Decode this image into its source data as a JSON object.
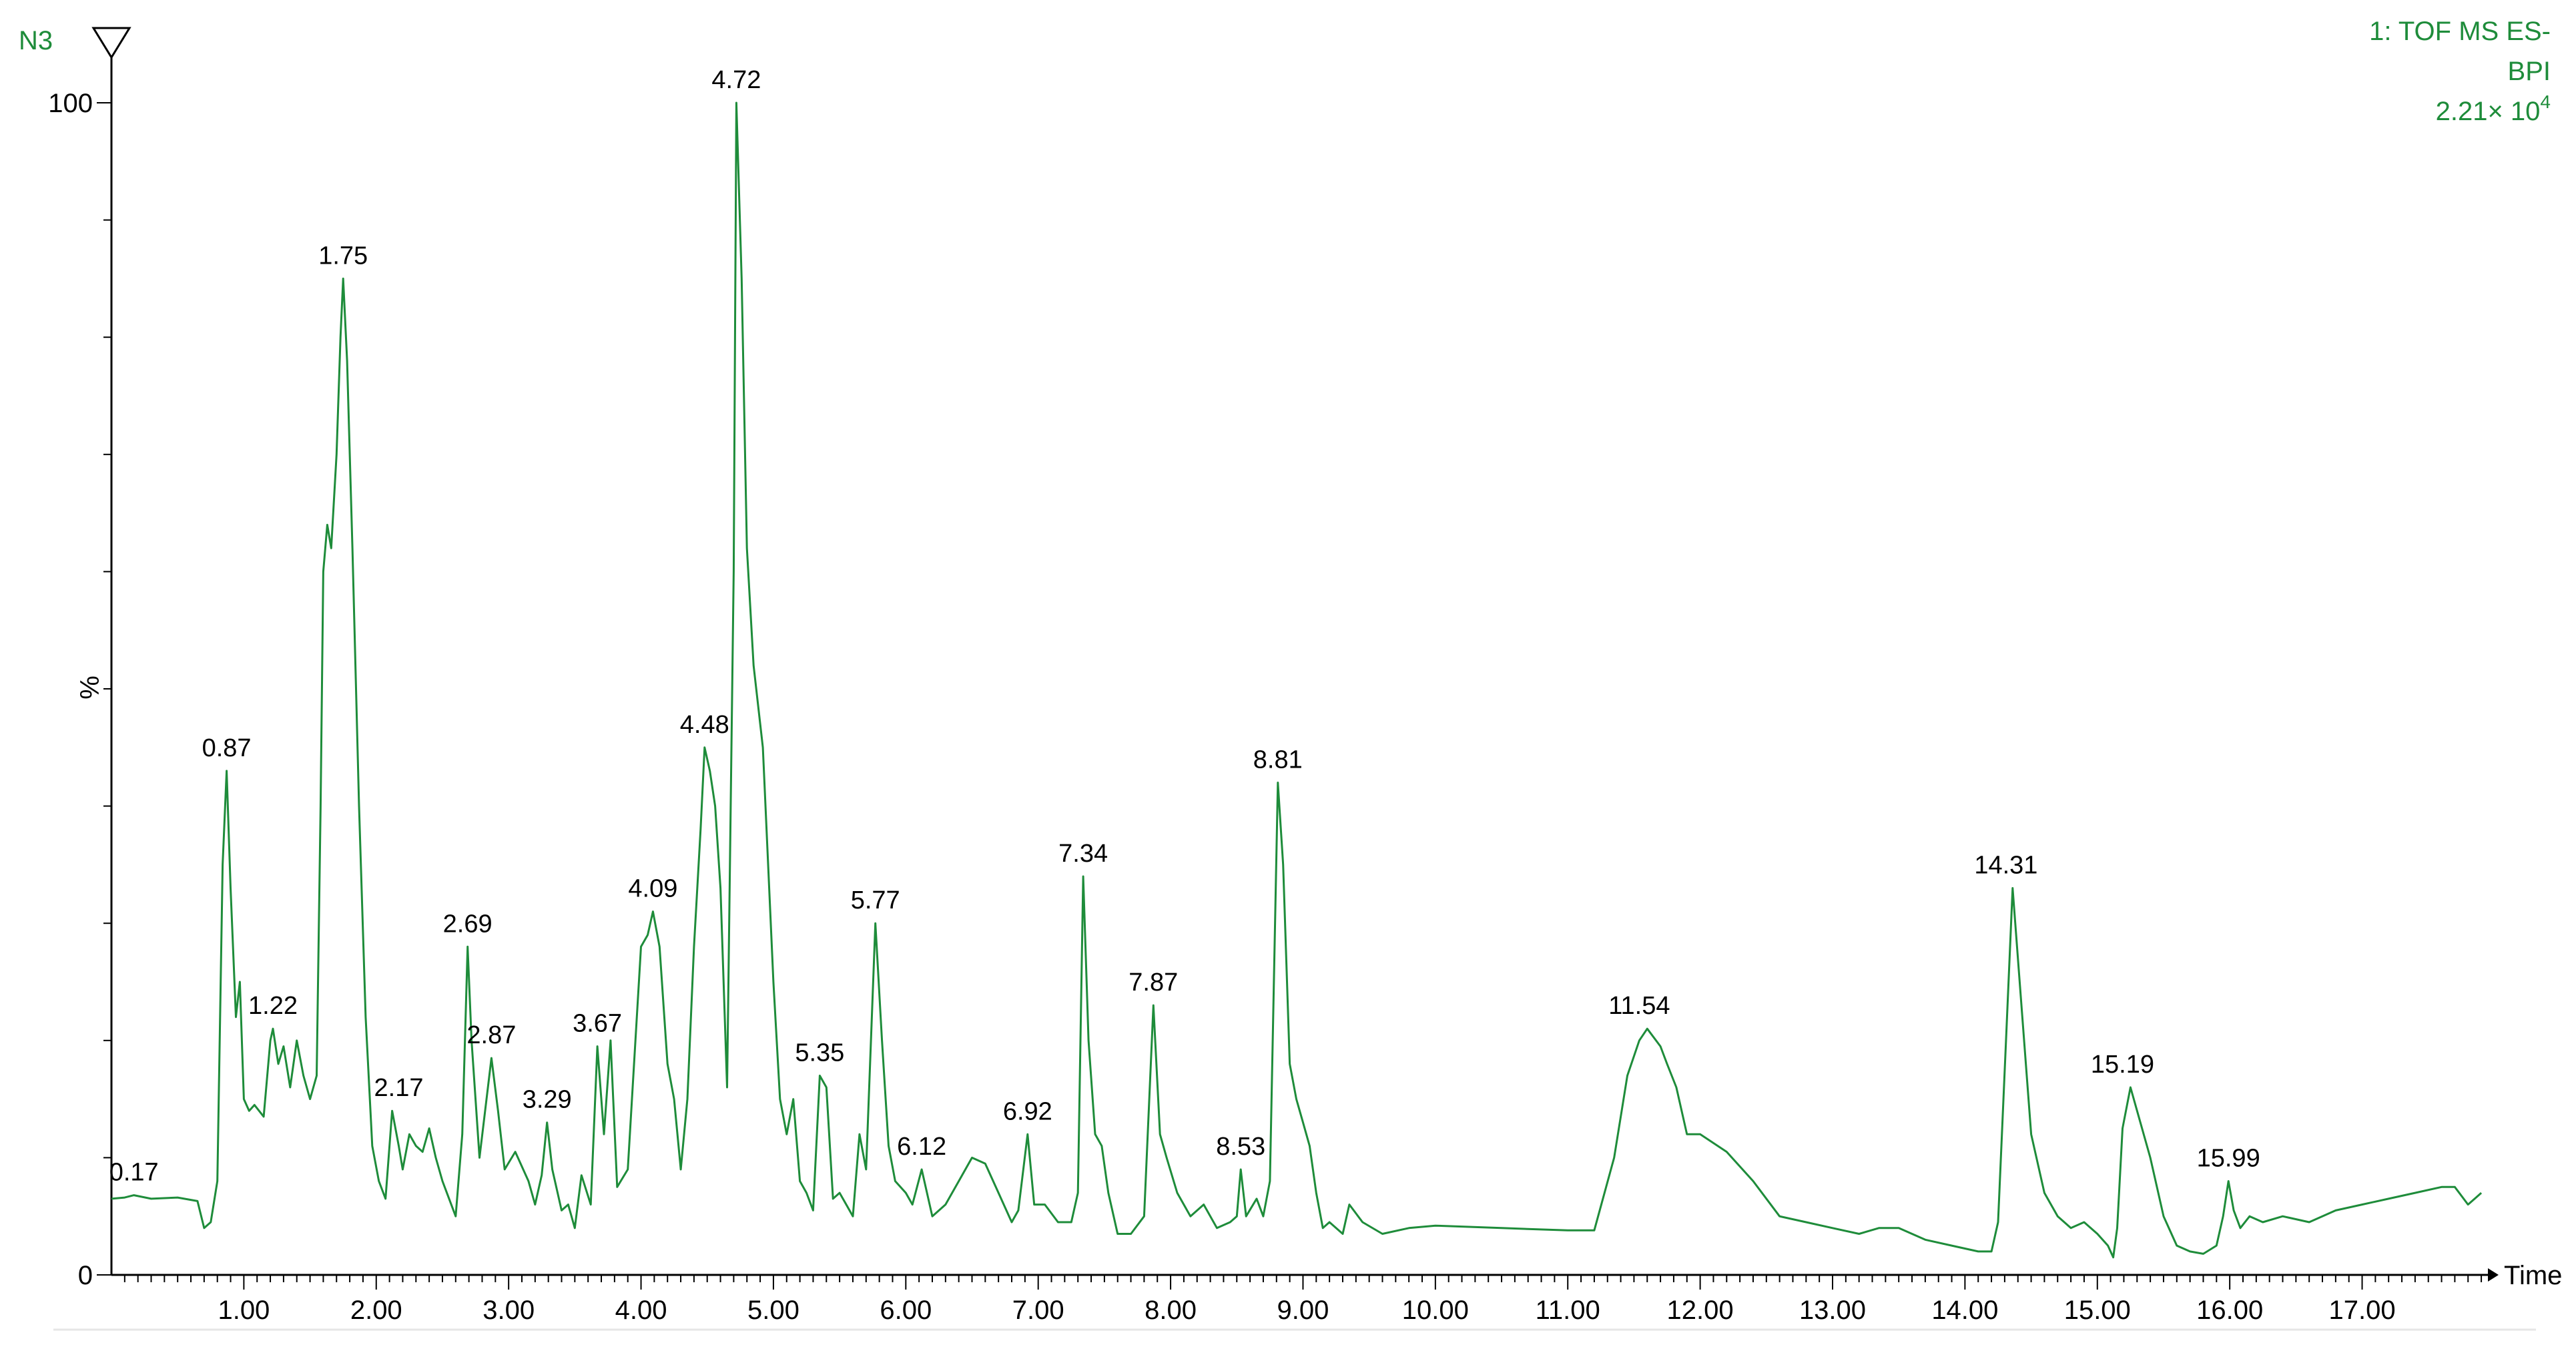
{
  "header": {
    "sample_name": "N3",
    "function_line": "1: TOF MS ES-",
    "trace_type": "BPI",
    "intensity_mantissa": "2.21× 10",
    "intensity_exponent": "4"
  },
  "colors": {
    "trace": "#1e8c3a",
    "text_green": "#1e8c3a",
    "axis": "#000000",
    "background": "#ffffff"
  },
  "icons": {
    "marker": "down-triangle-icon"
  },
  "chart_data": {
    "type": "line",
    "title": "",
    "xlabel": "Time",
    "ylabel": "%",
    "xlim": [
      0.0,
      17.95
    ],
    "ylim": [
      0,
      100
    ],
    "grid": false,
    "legend": "none",
    "x_ticks": [
      "1.00",
      "2.00",
      "3.00",
      "4.00",
      "5.00",
      "6.00",
      "7.00",
      "8.00",
      "9.00",
      "10.00",
      "11.00",
      "12.00",
      "13.00",
      "14.00",
      "15.00",
      "16.00",
      "17.00"
    ],
    "x_tick_values": [
      1,
      2,
      3,
      4,
      5,
      6,
      7,
      8,
      9,
      10,
      11,
      12,
      13,
      14,
      15,
      16,
      17
    ],
    "y_ticks": [
      "0",
      "100"
    ],
    "y_tick_values": [
      0,
      100
    ],
    "series": [
      {
        "x": [
          0.0,
          0.1,
          0.17,
          0.3,
          0.5,
          0.65,
          0.7,
          0.75,
          0.8,
          0.84,
          0.87,
          0.9,
          0.94,
          0.97,
          1.0,
          1.04,
          1.08,
          1.15,
          1.2,
          1.22,
          1.26,
          1.3,
          1.35,
          1.4,
          1.45,
          1.5,
          1.55,
          1.58,
          1.6,
          1.63,
          1.66,
          1.7,
          1.73,
          1.75,
          1.78,
          1.82,
          1.87,
          1.92,
          1.97,
          2.02,
          2.07,
          2.12,
          2.17,
          2.2,
          2.25,
          2.3,
          2.35,
          2.4,
          2.45,
          2.5,
          2.6,
          2.65,
          2.69,
          2.72,
          2.78,
          2.87,
          2.92,
          2.97,
          3.05,
          3.15,
          3.2,
          3.25,
          3.29,
          3.33,
          3.4,
          3.45,
          3.5,
          3.55,
          3.62,
          3.67,
          3.72,
          3.77,
          3.82,
          3.9,
          4.0,
          4.05,
          4.09,
          4.14,
          4.2,
          4.25,
          4.3,
          4.35,
          4.4,
          4.45,
          4.48,
          4.52,
          4.56,
          4.6,
          4.65,
          4.7,
          4.72,
          4.76,
          4.8,
          4.85,
          4.92,
          5.0,
          5.05,
          5.1,
          5.15,
          5.2,
          5.25,
          5.3,
          5.35,
          5.4,
          5.45,
          5.5,
          5.6,
          5.65,
          5.7,
          5.77,
          5.82,
          5.87,
          5.92,
          6.0,
          6.05,
          6.12,
          6.2,
          6.3,
          6.4,
          6.5,
          6.6,
          6.7,
          6.8,
          6.85,
          6.92,
          6.97,
          7.05,
          7.15,
          7.25,
          7.3,
          7.34,
          7.38,
          7.43,
          7.48,
          7.53,
          7.6,
          7.7,
          7.8,
          7.87,
          7.92,
          7.97,
          8.05,
          8.15,
          8.25,
          8.35,
          8.45,
          8.5,
          8.53,
          8.57,
          8.65,
          8.7,
          8.75,
          8.81,
          8.85,
          8.9,
          8.95,
          9.0,
          9.05,
          9.1,
          9.15,
          9.2,
          9.3,
          9.35,
          9.45,
          9.6,
          9.8,
          10.0,
          10.5,
          11.0,
          11.2,
          11.35,
          11.45,
          11.54,
          11.6,
          11.7,
          11.75,
          11.82,
          11.9,
          12.0,
          12.2,
          12.4,
          12.6,
          12.8,
          13.0,
          13.2,
          13.35,
          13.5,
          13.7,
          13.9,
          14.1,
          14.2,
          14.25,
          14.31,
          14.36,
          14.42,
          14.5,
          14.6,
          14.7,
          14.8,
          14.9,
          15.0,
          15.08,
          15.12,
          15.15,
          15.19,
          15.25,
          15.3,
          15.4,
          15.5,
          15.6,
          15.7,
          15.8,
          15.9,
          15.95,
          15.99,
          16.03,
          16.08,
          16.15,
          16.25,
          16.4,
          16.6,
          16.8,
          17.0,
          17.2,
          17.4,
          17.6,
          17.7,
          17.8,
          17.85,
          17.9
        ],
        "y": [
          6.5,
          6.6,
          6.8,
          6.5,
          6.6,
          6.3,
          4.0,
          4.5,
          8.0,
          35.0,
          43.0,
          33.0,
          22.0,
          25.0,
          15.0,
          14.0,
          14.5,
          13.5,
          20.0,
          21.0,
          18.0,
          19.5,
          16.0,
          20.0,
          17.0,
          15.0,
          17.0,
          40.0,
          60.0,
          64.0,
          62.0,
          70.0,
          80.0,
          85.0,
          78.0,
          62.0,
          40.0,
          22.0,
          11.0,
          8.0,
          6.5,
          14.0,
          11.0,
          9.0,
          12.0,
          11.0,
          10.5,
          12.5,
          10.0,
          8.0,
          5.0,
          12.0,
          28.0,
          20.0,
          10.0,
          18.5,
          14.0,
          9.0,
          10.5,
          8.0,
          6.0,
          8.5,
          13.0,
          9.0,
          5.5,
          6.0,
          4.0,
          8.5,
          6.0,
          19.5,
          12.0,
          20.0,
          7.5,
          9.0,
          28.0,
          29.0,
          31.0,
          28.0,
          18.0,
          15.0,
          9.0,
          15.0,
          28.0,
          38.0,
          45.0,
          43.0,
          40.0,
          33.0,
          16.0,
          60.0,
          100.0,
          85.0,
          62.0,
          52.0,
          45.0,
          25.0,
          15.0,
          12.0,
          15.0,
          8.0,
          7.0,
          5.5,
          17.0,
          16.0,
          6.5,
          7.0,
          5.0,
          12.0,
          9.0,
          30.0,
          20.0,
          11.0,
          8.0,
          7.0,
          6.0,
          9.0,
          5.0,
          6.0,
          8.0,
          10.0,
          9.5,
          7.0,
          4.5,
          5.5,
          12.0,
          6.0,
          6.0,
          4.5,
          4.5,
          7.0,
          34.0,
          20.0,
          12.0,
          11.0,
          7.0,
          3.5,
          3.5,
          5.0,
          23.0,
          12.0,
          10.0,
          7.0,
          5.0,
          6.0,
          4.0,
          4.5,
          5.0,
          9.0,
          5.0,
          6.5,
          5.0,
          8.0,
          42.0,
          35.0,
          18.0,
          15.0,
          13.0,
          11.0,
          7.0,
          4.0,
          4.5,
          3.5,
          6.0,
          4.5,
          3.5,
          4.0,
          4.2,
          4.0,
          3.8,
          3.8,
          10.0,
          17.0,
          20.0,
          21.0,
          19.5,
          18.0,
          16.0,
          12.0,
          12.0,
          10.5,
          8.0,
          5.0,
          4.5,
          4.0,
          3.5,
          4.0,
          4.0,
          3.0,
          2.5,
          2.0,
          2.0,
          4.5,
          20.0,
          33.0,
          24.0,
          12.0,
          7.0,
          5.0,
          4.0,
          4.5,
          3.5,
          2.5,
          1.5,
          4.0,
          12.5,
          16.0,
          14.0,
          10.0,
          5.0,
          2.5,
          2.0,
          1.8,
          2.5,
          5.0,
          8.0,
          5.5,
          4.0,
          5.0,
          4.5,
          5.0,
          4.5,
          5.5,
          6.0,
          6.5,
          7.0,
          7.5,
          7.5,
          6.0,
          6.5,
          7.0
        ]
      }
    ],
    "peak_labels": [
      {
        "x": 0.17,
        "y": 6.8,
        "label": "0.17"
      },
      {
        "x": 0.87,
        "y": 43.0,
        "label": "0.87"
      },
      {
        "x": 1.22,
        "y": 21.0,
        "label": "1.22"
      },
      {
        "x": 1.75,
        "y": 85.0,
        "label": "1.75"
      },
      {
        "x": 2.17,
        "y": 14.0,
        "label": "2.17"
      },
      {
        "x": 2.69,
        "y": 28.0,
        "label": "2.69"
      },
      {
        "x": 2.87,
        "y": 18.5,
        "label": "2.87"
      },
      {
        "x": 3.29,
        "y": 13.0,
        "label": "3.29"
      },
      {
        "x": 3.67,
        "y": 19.5,
        "label": "3.67"
      },
      {
        "x": 4.09,
        "y": 31.0,
        "label": "4.09"
      },
      {
        "x": 4.48,
        "y": 45.0,
        "label": "4.48"
      },
      {
        "x": 4.72,
        "y": 100.0,
        "label": "4.72"
      },
      {
        "x": 5.35,
        "y": 17.0,
        "label": "5.35"
      },
      {
        "x": 5.77,
        "y": 30.0,
        "label": "5.77"
      },
      {
        "x": 6.12,
        "y": 9.0,
        "label": "6.12"
      },
      {
        "x": 6.92,
        "y": 12.0,
        "label": "6.92"
      },
      {
        "x": 7.34,
        "y": 34.0,
        "label": "7.34"
      },
      {
        "x": 7.87,
        "y": 23.0,
        "label": "7.87"
      },
      {
        "x": 8.53,
        "y": 9.0,
        "label": "8.53"
      },
      {
        "x": 8.81,
        "y": 42.0,
        "label": "8.81"
      },
      {
        "x": 11.54,
        "y": 21.0,
        "label": "11.54"
      },
      {
        "x": 14.31,
        "y": 33.0,
        "label": "14.31"
      },
      {
        "x": 15.19,
        "y": 16.0,
        "label": "15.19"
      },
      {
        "x": 15.99,
        "y": 8.0,
        "label": "15.99"
      }
    ]
  }
}
